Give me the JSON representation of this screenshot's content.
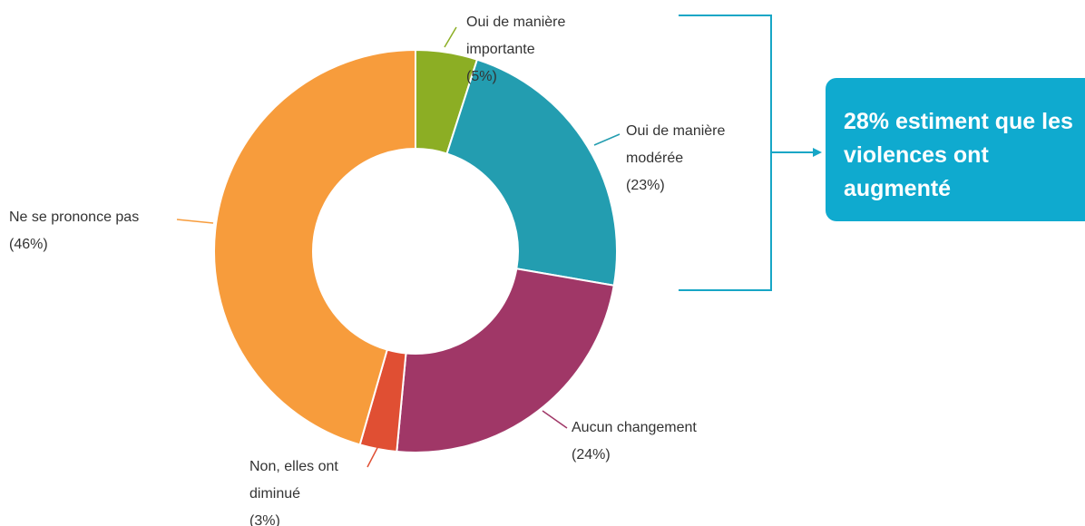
{
  "chart_data": {
    "type": "donut",
    "categories": [
      "Oui de manière importante",
      "Oui de manière modérée",
      "Aucun changement",
      "Non, elles ont diminué",
      "Ne se prononce pas"
    ],
    "values": [
      5,
      23,
      24,
      3,
      46
    ],
    "value_labels": [
      "(5%)",
      "(23%)",
      "(24%)",
      "(3%)",
      "(46%)"
    ],
    "colors": [
      "#8cae24",
      "#239db0",
      "#a03767",
      "#e04f33",
      "#f79c3c"
    ],
    "annotation": "28% estiment que les violences ont augmenté"
  }
}
